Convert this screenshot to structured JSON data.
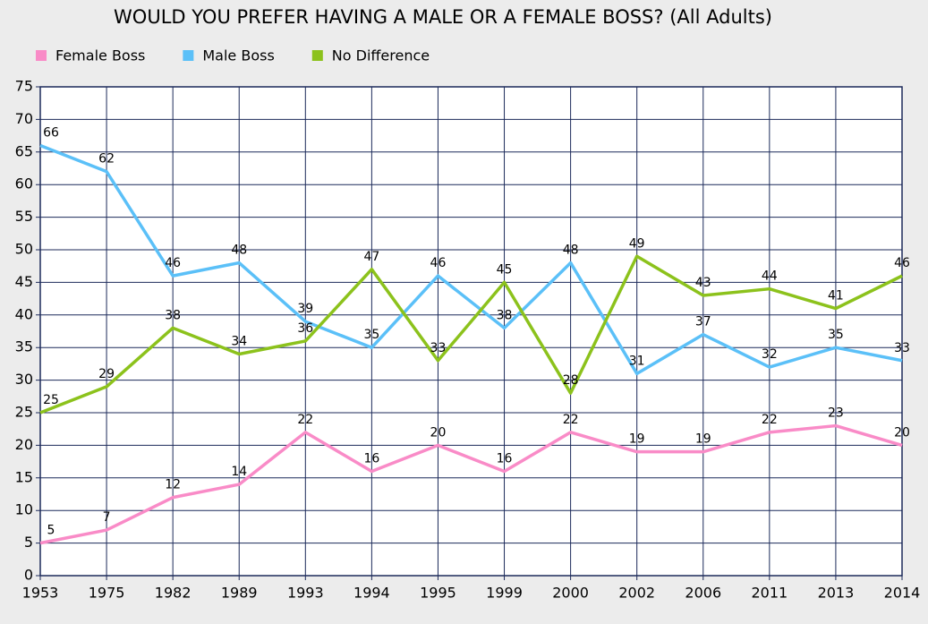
{
  "chart_data": {
    "type": "line",
    "title": "WOULD YOU PREFER HAVING A MALE OR A FEMALE BOSS? (All Adults)",
    "categories": [
      "1953",
      "1975",
      "1982",
      "1989",
      "1993",
      "1994",
      "1995",
      "1999",
      "2000",
      "2002",
      "2006",
      "2011",
      "2013",
      "2014"
    ],
    "series": [
      {
        "name": "Female Boss",
        "color": "#f98bc7",
        "values": [
          5,
          7,
          12,
          14,
          22,
          16,
          20,
          16,
          22,
          19,
          19,
          22,
          23,
          20
        ]
      },
      {
        "name": "Male Boss",
        "color": "#5bc0f8",
        "values": [
          66,
          62,
          46,
          48,
          39,
          35,
          46,
          38,
          48,
          31,
          37,
          32,
          35,
          33
        ]
      },
      {
        "name": "No Difference",
        "color": "#8cc21c",
        "values": [
          25,
          29,
          38,
          34,
          36,
          47,
          33,
          45,
          28,
          49,
          43,
          44,
          41,
          46
        ]
      }
    ],
    "ylim": [
      0,
      75
    ],
    "yticks": [
      0,
      5,
      10,
      15,
      20,
      25,
      30,
      35,
      40,
      45,
      50,
      55,
      60,
      65,
      70,
      75
    ],
    "grid": true,
    "legend": "top"
  }
}
